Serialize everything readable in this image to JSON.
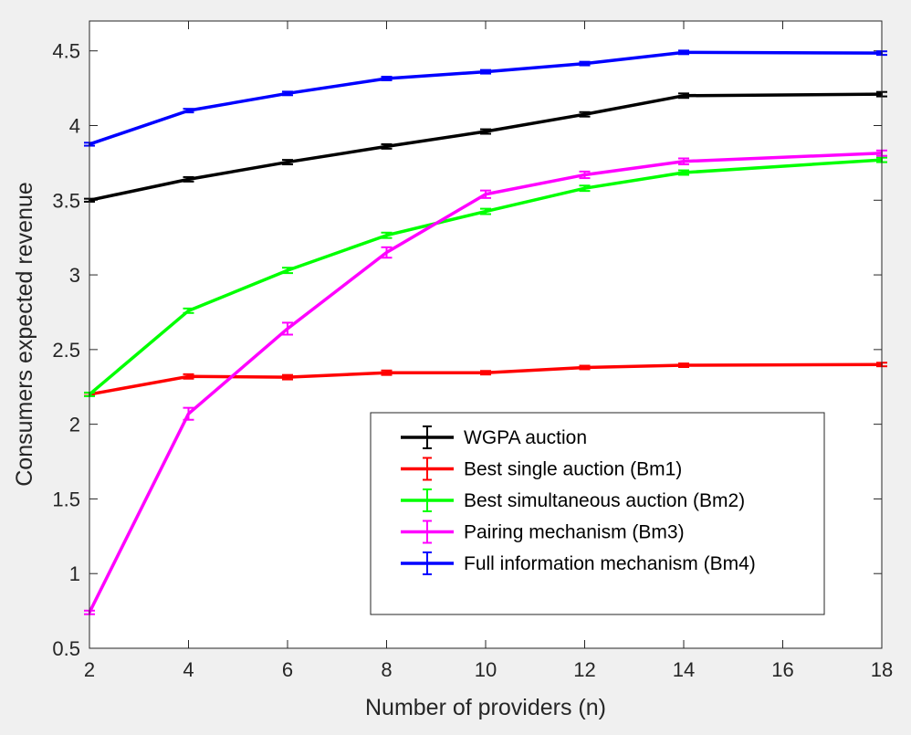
{
  "chart_data": {
    "type": "line",
    "title": "",
    "xlabel": "Number of providers (n)",
    "ylabel": "Consumers expected revenue",
    "xlim": [
      2,
      18
    ],
    "ylim": [
      0.5,
      4.7
    ],
    "xticks": [
      2,
      4,
      6,
      8,
      10,
      12,
      14,
      16,
      18
    ],
    "yticks": [
      0.5,
      1,
      1.5,
      2,
      2.5,
      3,
      3.5,
      4,
      4.5
    ],
    "ytick_labels": [
      "0.5",
      "1",
      "1.5",
      "2",
      "2.5",
      "3",
      "3.5",
      "4",
      "4.5"
    ],
    "grid": false,
    "legend_position": "bottom-right",
    "x": [
      2,
      4,
      6,
      8,
      10,
      12,
      14,
      18
    ],
    "series": [
      {
        "name": "WGPA auction",
        "color": "#000000",
        "values": [
          3.5,
          3.64,
          3.755,
          3.86,
          3.96,
          4.075,
          4.2,
          4.21
        ],
        "errors": [
          0.01,
          0.015,
          0.015,
          0.015,
          0.015,
          0.015,
          0.015,
          0.015
        ]
      },
      {
        "name": "Best single auction (Bm1)",
        "color": "#ff0000",
        "values": [
          2.2,
          2.32,
          2.315,
          2.345,
          2.345,
          2.38,
          2.395,
          2.4
        ],
        "errors": [
          0.01,
          0.015,
          0.015,
          0.015,
          0.012,
          0.012,
          0.012,
          0.012
        ]
      },
      {
        "name": "Best simultaneous auction (Bm2)",
        "color": "#00ff00",
        "values": [
          2.2,
          2.76,
          3.03,
          3.265,
          3.425,
          3.58,
          3.685,
          3.77
        ],
        "errors": [
          0.012,
          0.015,
          0.018,
          0.018,
          0.018,
          0.018,
          0.015,
          0.015
        ]
      },
      {
        "name": "Pairing mechanism (Bm3)",
        "color": "#ff00ff",
        "values": [
          0.74,
          2.07,
          2.64,
          3.15,
          3.54,
          3.67,
          3.76,
          3.815
        ],
        "errors": [
          0.012,
          0.04,
          0.04,
          0.035,
          0.025,
          0.022,
          0.02,
          0.018
        ]
      },
      {
        "name": "Full information mechanism (Bm4)",
        "color": "#0000ff",
        "values": [
          3.875,
          4.1,
          4.215,
          4.315,
          4.36,
          4.415,
          4.49,
          4.485
        ],
        "errors": [
          0.01,
          0.012,
          0.012,
          0.012,
          0.012,
          0.012,
          0.012,
          0.012
        ]
      }
    ]
  }
}
